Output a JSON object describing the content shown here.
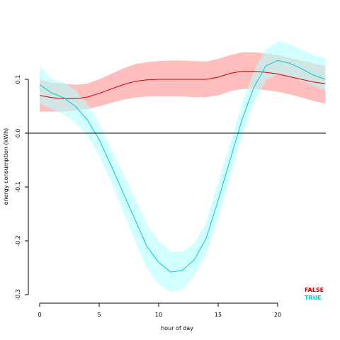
{
  "chart_data": {
    "type": "line",
    "title": "",
    "xlabel": "hour of day",
    "ylabel": "energy consumption (kWh)",
    "xlim": [
      0,
      24
    ],
    "ylim": [
      -0.3,
      0.15
    ],
    "x_ticks": [
      0,
      5,
      10,
      15,
      20
    ],
    "y_ticks": [
      -0.3,
      -0.2,
      -0.1,
      0.0,
      0.1
    ],
    "y_tick_labels": [
      "-0.3",
      "-0.2",
      "-0.1",
      "0.0",
      "0.1"
    ],
    "reference_line_y": 0,
    "grid": false,
    "legend_position": "bottom-right",
    "x": [
      0,
      1,
      2,
      3,
      4,
      5,
      6,
      7,
      8,
      9,
      10,
      11,
      12,
      13,
      14,
      15,
      16,
      17,
      18,
      19,
      20,
      21,
      22,
      23,
      24
    ],
    "series": [
      {
        "name": "FALSE",
        "color": "#cc0000",
        "band_color": "#ffb3b3",
        "values": [
          0.07,
          0.066,
          0.064,
          0.064,
          0.067,
          0.074,
          0.082,
          0.09,
          0.096,
          0.099,
          0.1,
          0.1,
          0.1,
          0.1,
          0.1,
          0.104,
          0.111,
          0.115,
          0.115,
          0.113,
          0.11,
          0.105,
          0.1,
          0.095,
          0.092
        ],
        "lower": [
          0.04,
          0.04,
          0.04,
          0.042,
          0.045,
          0.05,
          0.056,
          0.062,
          0.066,
          0.068,
          0.068,
          0.068,
          0.068,
          0.067,
          0.067,
          0.07,
          0.078,
          0.082,
          0.082,
          0.08,
          0.077,
          0.072,
          0.066,
          0.06,
          0.055
        ],
        "upper": [
          0.1,
          0.094,
          0.092,
          0.09,
          0.092,
          0.1,
          0.11,
          0.12,
          0.128,
          0.132,
          0.134,
          0.135,
          0.135,
          0.134,
          0.133,
          0.138,
          0.145,
          0.15,
          0.15,
          0.148,
          0.145,
          0.14,
          0.135,
          0.13,
          0.125
        ]
      },
      {
        "name": "TRUE",
        "color": "#00cccc",
        "band_color": "#b3ffff",
        "values": [
          0.09,
          0.075,
          0.066,
          0.05,
          0.025,
          -0.012,
          -0.06,
          -0.11,
          -0.16,
          -0.21,
          -0.24,
          -0.258,
          -0.255,
          -0.235,
          -0.195,
          -0.125,
          -0.05,
          0.025,
          0.085,
          0.125,
          0.135,
          0.13,
          0.12,
          0.108,
          0.1
        ],
        "lower": [
          0.055,
          0.045,
          0.035,
          0.02,
          -0.005,
          -0.042,
          -0.09,
          -0.145,
          -0.2,
          -0.25,
          -0.28,
          -0.295,
          -0.29,
          -0.265,
          -0.225,
          -0.16,
          -0.08,
          -0.005,
          0.055,
          0.098,
          0.11,
          0.105,
          0.097,
          0.088,
          0.08
        ],
        "upper": [
          0.125,
          0.1,
          0.095,
          0.08,
          0.055,
          0.018,
          -0.03,
          -0.075,
          -0.12,
          -0.17,
          -0.2,
          -0.22,
          -0.22,
          -0.205,
          -0.165,
          -0.09,
          -0.02,
          0.055,
          0.115,
          0.155,
          0.17,
          0.165,
          0.155,
          0.145,
          0.14
        ]
      }
    ]
  }
}
